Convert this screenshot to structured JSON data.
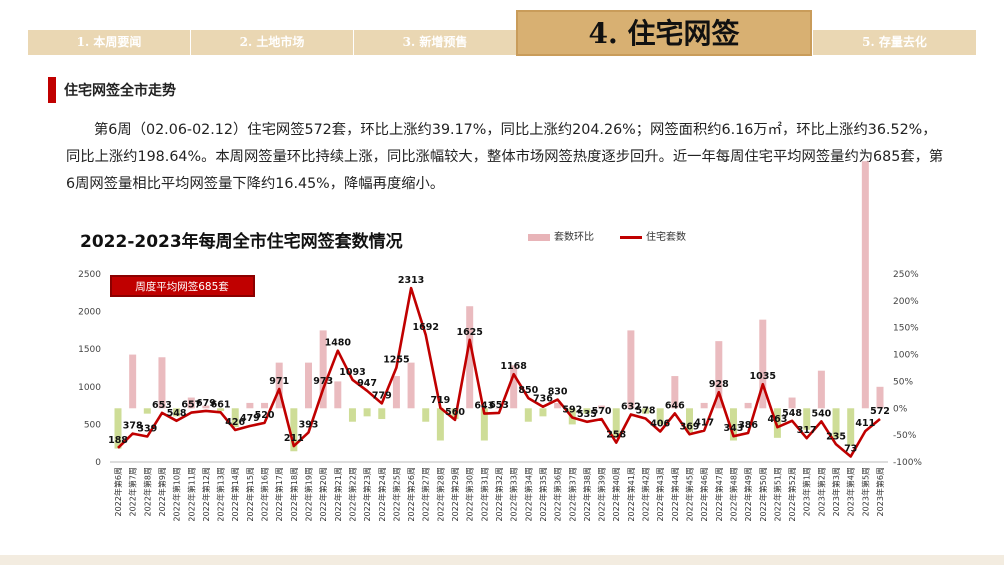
{
  "nav": {
    "tabs": [
      {
        "label": "1. 本周要闻",
        "active": false
      },
      {
        "label": "2. 土地市场",
        "active": false
      },
      {
        "label": "3. 新增预售",
        "active": false
      },
      {
        "label": "4. 住宅网签",
        "active": true
      },
      {
        "label": "5. 存量去化",
        "active": false
      }
    ]
  },
  "section": {
    "title": "住宅网签全市走势"
  },
  "paragraph": "第6周（02.06-02.12）住宅网签572套，环比上涨约39.17%，同比上涨约204.26%；网签面积约6.16万㎡，环比上涨约36.52%，同比上涨约198.64%。本周网签量环比持续上涨，同比涨幅较大，整体市场网签热度逐步回升。近一年每周住宅平均网签量约为685套，第6周网签量相比平均网签量下降约16.45%，降幅再度缩小。",
  "colors": {
    "accent": "#c00000",
    "tab": "#ead7b3",
    "tab_active": "#d8b072",
    "bar_up": "#e8b4b8",
    "bar_down": "#c9d98c",
    "line": "#c00000"
  },
  "chart_data": {
    "type": "bar+line",
    "title": "2022-2023年每周全市住宅网签套数情况",
    "legend": [
      {
        "name": "套数环比",
        "kind": "bar",
        "color": "#e8b4b8"
      },
      {
        "name": "住宅套数",
        "kind": "line",
        "color": "#c00000"
      }
    ],
    "annotation": "周度平均网签685套",
    "categories": [
      "2022年第6周",
      "2022年第7周",
      "2022年第8周",
      "2022年第9周",
      "2022年第10周",
      "2022年第11周",
      "2022年第12周",
      "2022年第13周",
      "2022年第14周",
      "2022年第15周",
      "2022年第16周",
      "2022年第17周",
      "2022年第18周",
      "2022年第19周",
      "2022年第20周",
      "2022年第21周",
      "2022年第22周",
      "2022年第23周",
      "2022年第24周",
      "2022年第25周",
      "2022年第26周",
      "2022年第27周",
      "2022年第28周",
      "2022年第29周",
      "2022年第30周",
      "2022年第31周",
      "2022年第32周",
      "2022年第33周",
      "2022年第34周",
      "2022年第35周",
      "2022年第36周",
      "2022年第37周",
      "2022年第38周",
      "2022年第39周",
      "2022年第40周",
      "2022年第41周",
      "2022年第42周",
      "2022年第43周",
      "2022年第44周",
      "2022年第45周",
      "2022年第46周",
      "2022年第47周",
      "2022年第48周",
      "2022年第49周",
      "2022年第50周",
      "2022年第51周",
      "2022年第52周",
      "2023年第1周",
      "2023年第2周",
      "2023年第3周",
      "2023年第4周",
      "2023年第5周",
      "2023年第6周"
    ],
    "series": [
      {
        "name": "住宅套数",
        "axis": "left",
        "values": [
          188,
          378,
          339,
          653,
          548,
          657,
          679,
          661,
          426,
          479,
          520,
          971,
          211,
          393,
          973,
          1480,
          1093,
          947,
          779,
          1255,
          2313,
          1692,
          719,
          560,
          1625,
          643,
          653,
          1168,
          850,
          736,
          830,
          592,
          535,
          570,
          258,
          632,
          578,
          406,
          646,
          369,
          417,
          928,
          343,
          386,
          1035,
          463,
          548,
          317,
          540,
          235,
          73,
          411,
          572
        ]
      },
      {
        "name": "套数环比",
        "axis": "right",
        "values": [
          -75,
          100,
          -10,
          95,
          -15,
          20,
          5,
          -5,
          -35,
          10,
          10,
          85,
          -80,
          85,
          145,
          50,
          -25,
          -15,
          -20,
          60,
          85,
          -25,
          -60,
          -20,
          190,
          -60,
          0,
          80,
          -25,
          -15,
          10,
          -30,
          -10,
          5,
          -55,
          145,
          -10,
          -30,
          60,
          -45,
          10,
          125,
          -60,
          10,
          165,
          -55,
          20,
          -40,
          70,
          -55,
          -70,
          460,
          40
        ]
      }
    ],
    "y_left": {
      "ticks": [
        "0",
        "500",
        "1000",
        "1500",
        "2000",
        "2500"
      ],
      "lim": [
        0,
        2500
      ]
    },
    "y_right": {
      "ticks": [
        "-100%",
        "-50%",
        "0%",
        "50%",
        "100%",
        "150%",
        "200%",
        "250%"
      ],
      "lim": [
        -100,
        250
      ]
    }
  }
}
